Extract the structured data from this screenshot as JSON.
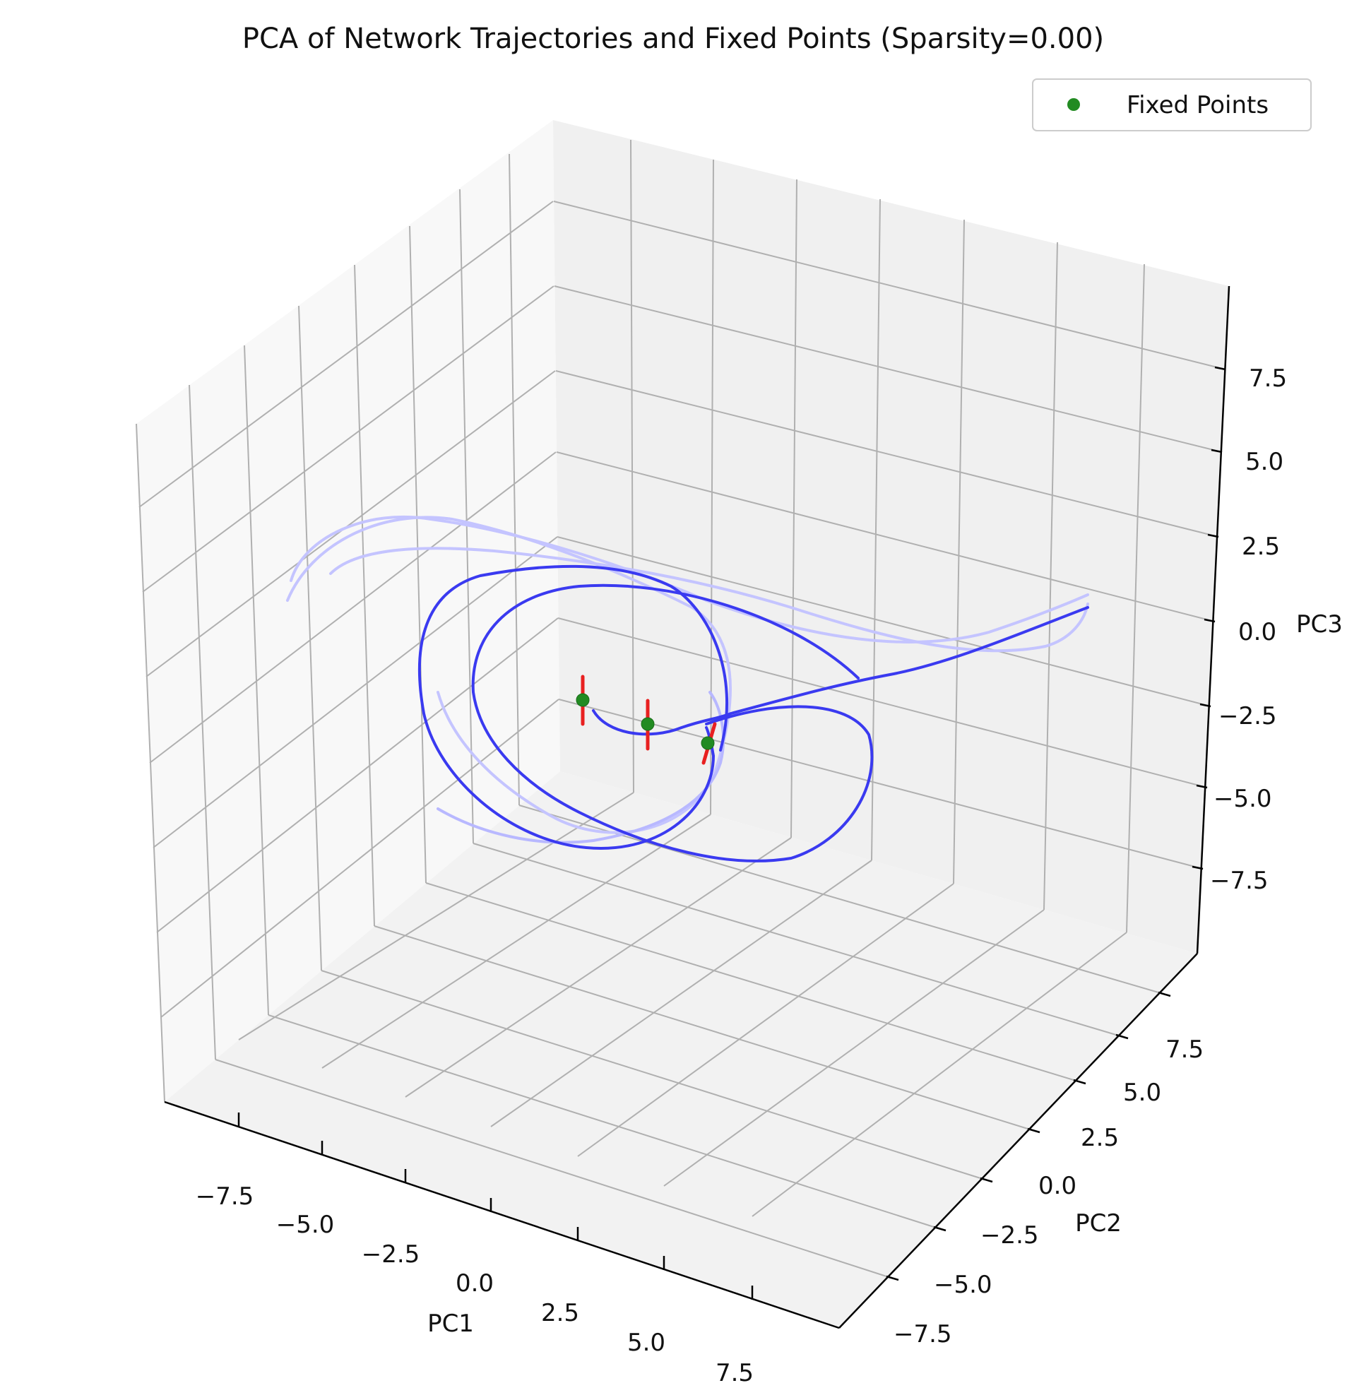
{
  "chart_data": {
    "type": "line",
    "projection": "3d",
    "title": "PCA of Network Trajectories and Fixed Points (Sparsity=0.00)",
    "xlabel": "PC1",
    "ylabel": "PC2",
    "zlabel": "PC3",
    "xlim": [
      -10,
      10
    ],
    "ylim": [
      -10,
      10
    ],
    "zlim": [
      -10,
      10
    ],
    "x_ticks": [
      "−7.5",
      "−5.0",
      "−2.5",
      "0.0",
      "2.5",
      "5.0",
      "7.5"
    ],
    "y_ticks": [
      "−7.5",
      "−5.0",
      "−2.5",
      "0.0",
      "2.5",
      "5.0",
      "7.5"
    ],
    "z_ticks": [
      "−7.5",
      "−5.0",
      "−2.5",
      "0.0",
      "2.5",
      "5.0",
      "7.5"
    ],
    "grid": true,
    "legend": {
      "location": "top-right",
      "entries": [
        {
          "label": "Fixed Points",
          "color": "#228b22",
          "marker": "circle"
        }
      ]
    },
    "fixed_points": [
      {
        "x": -1.0,
        "y": 1.8,
        "z": -2.0
      },
      {
        "x": 0.6,
        "y": 1.5,
        "z": -2.8
      },
      {
        "x": 2.2,
        "y": 1.0,
        "z": -3.2
      }
    ],
    "trajectory_color": "#3a3af0",
    "fixed_point_color": "#228b22",
    "eigen_direction_color": "#e82020"
  }
}
